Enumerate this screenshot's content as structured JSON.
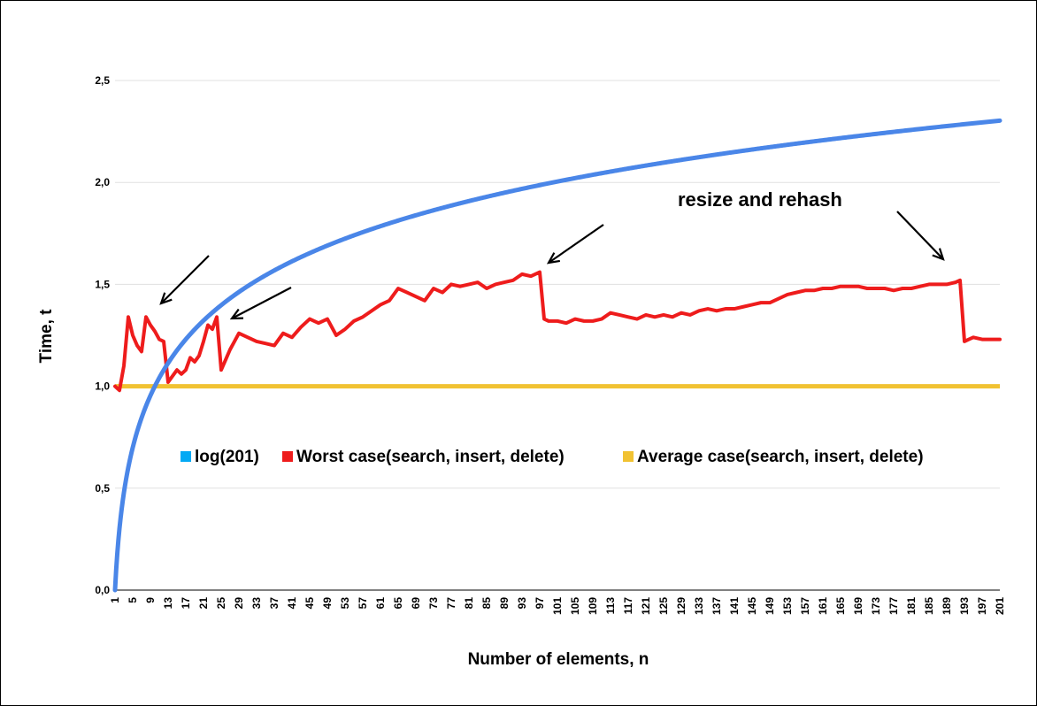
{
  "chart_data": {
    "type": "line",
    "xlabel": "Number of elements, n",
    "ylabel": "Time, t",
    "xlim": [
      1,
      201
    ],
    "ylim": [
      0,
      2.5
    ],
    "yticks": [
      "0,0",
      "0,5",
      "1,0",
      "1,5",
      "2,0",
      "2,5"
    ],
    "ytick_values": [
      0,
      0.5,
      1.0,
      1.5,
      2.0,
      2.5
    ],
    "x_tick_step": 4,
    "grid": "horizontal",
    "legend": "inside-middle",
    "annotation": "resize and rehash",
    "series": [
      {
        "name": "log(201)",
        "color": "#4a86e8",
        "function": "log10",
        "x": [
          1,
          201
        ]
      },
      {
        "name": "Worst case(search, insert, delete)",
        "color": "#ee1c1c",
        "x": [
          1,
          2,
          3,
          4,
          5,
          6,
          7,
          8,
          9,
          10,
          11,
          12,
          13,
          14,
          15,
          16,
          17,
          18,
          19,
          20,
          21,
          22,
          23,
          24,
          25,
          26,
          27,
          28,
          29,
          31,
          33,
          35,
          37,
          39,
          41,
          43,
          45,
          47,
          49,
          51,
          53,
          55,
          57,
          59,
          61,
          63,
          65,
          67,
          69,
          71,
          73,
          75,
          77,
          79,
          81,
          83,
          85,
          87,
          89,
          91,
          93,
          95,
          97,
          98,
          99,
          101,
          103,
          105,
          107,
          109,
          111,
          113,
          115,
          117,
          119,
          121,
          123,
          125,
          127,
          129,
          131,
          133,
          135,
          137,
          139,
          141,
          143,
          145,
          147,
          149,
          151,
          153,
          155,
          157,
          159,
          161,
          163,
          165,
          167,
          169,
          171,
          173,
          175,
          177,
          179,
          181,
          183,
          185,
          187,
          189,
          191,
          192,
          193,
          194,
          195,
          197,
          199,
          201
        ],
        "values": [
          1.0,
          0.98,
          1.1,
          1.34,
          1.25,
          1.2,
          1.17,
          1.34,
          1.3,
          1.27,
          1.23,
          1.22,
          1.02,
          1.05,
          1.08,
          1.06,
          1.08,
          1.14,
          1.12,
          1.15,
          1.22,
          1.3,
          1.28,
          1.34,
          1.08,
          1.13,
          1.18,
          1.22,
          1.26,
          1.24,
          1.22,
          1.21,
          1.2,
          1.26,
          1.24,
          1.29,
          1.33,
          1.31,
          1.33,
          1.25,
          1.28,
          1.32,
          1.34,
          1.37,
          1.4,
          1.42,
          1.48,
          1.46,
          1.44,
          1.42,
          1.48,
          1.46,
          1.5,
          1.49,
          1.5,
          1.51,
          1.48,
          1.5,
          1.51,
          1.52,
          1.55,
          1.54,
          1.56,
          1.33,
          1.32,
          1.32,
          1.31,
          1.33,
          1.32,
          1.32,
          1.33,
          1.36,
          1.35,
          1.34,
          1.33,
          1.35,
          1.34,
          1.35,
          1.34,
          1.36,
          1.35,
          1.37,
          1.38,
          1.37,
          1.38,
          1.38,
          1.39,
          1.4,
          1.41,
          1.41,
          1.43,
          1.45,
          1.46,
          1.47,
          1.47,
          1.48,
          1.48,
          1.49,
          1.49,
          1.49,
          1.48,
          1.48,
          1.48,
          1.47,
          1.48,
          1.48,
          1.49,
          1.5,
          1.5,
          1.5,
          1.51,
          1.52,
          1.22,
          1.23,
          1.24,
          1.23,
          1.23,
          1.23
        ]
      },
      {
        "name": "Average case(search, insert, delete)",
        "color": "#f1c232",
        "x": [
          1,
          201
        ],
        "values": [
          1.0,
          1.0
        ]
      }
    ]
  }
}
